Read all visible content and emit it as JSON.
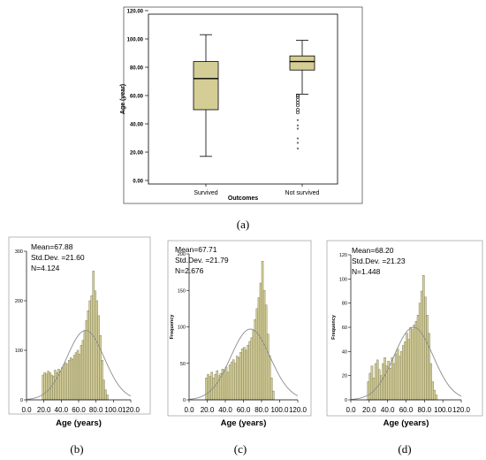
{
  "colors": {
    "fill": "#d6d09a",
    "edge": "#6d6a3e",
    "curve": "#808080",
    "axis": "#000000"
  },
  "chart_data": [
    {
      "type": "box",
      "caption": "(a)",
      "xlabel": "Outcomes",
      "ylabel": "Age (year)",
      "ylim": [
        0,
        120
      ],
      "yticks": [
        "0.00",
        "20.00",
        "40.00",
        "60.00",
        "80.00",
        "100.00",
        "120.00"
      ],
      "categories": [
        "Survived",
        "Not survived"
      ],
      "boxes": [
        {
          "whisker_low": 17,
          "q1": 50,
          "median": 72,
          "q3": 84,
          "whisker_high": 103,
          "outliers": []
        },
        {
          "whisker_low": 61,
          "q1": 78,
          "median": 84,
          "q3": 88,
          "whisker_high": 99,
          "outliers": [
            22,
            26,
            29,
            36,
            38,
            42,
            48,
            50,
            53,
            55,
            57,
            59,
            60
          ]
        }
      ]
    },
    {
      "type": "histogram",
      "caption": "(b)",
      "xlabel": "Age (years)",
      "ylabel": "",
      "stats": [
        "Mean=67.88",
        "Std.Dev. =21.60",
        "N=4.124"
      ],
      "xlim": [
        0,
        120
      ],
      "xticks": [
        "0.0",
        "20.0",
        "40.0",
        "60.0",
        "80.0",
        "100.0",
        "120.0"
      ],
      "ylim": [
        0,
        300
      ],
      "yticks": [
        "0",
        "100",
        "200",
        "300"
      ],
      "bin_start": 18,
      "bin_width": 2,
      "values": [
        50,
        55,
        52,
        58,
        55,
        50,
        48,
        60,
        55,
        62,
        58,
        65,
        70,
        75,
        72,
        80,
        85,
        82,
        90,
        95,
        100,
        92,
        110,
        120,
        140,
        160,
        180,
        200,
        210,
        260,
        220,
        200,
        170,
        130,
        80,
        40,
        20,
        10
      ],
      "normal_mean": 67.88,
      "normal_sd": 21.6,
      "normal_peak": 140
    },
    {
      "type": "histogram",
      "caption": "(c)",
      "xlabel": "Age (years)",
      "ylabel": "Frequency",
      "stats": [
        "Mean=67.71",
        "Std.Dev. =21.79",
        "N=2.676"
      ],
      "xlim": [
        0,
        120
      ],
      "xticks": [
        "0.0",
        "20.0",
        "40.0",
        "60.0",
        "80.0",
        "100.0",
        "120.0"
      ],
      "ylim": [
        0,
        200
      ],
      "yticks": [
        "0",
        "50",
        "100",
        "150",
        "200"
      ],
      "bin_start": 18,
      "bin_width": 2,
      "values": [
        30,
        35,
        32,
        38,
        30,
        35,
        40,
        33,
        36,
        42,
        40,
        45,
        38,
        48,
        52,
        55,
        50,
        60,
        58,
        65,
        70,
        72,
        68,
        75,
        80,
        85,
        95,
        110,
        125,
        140,
        160,
        190,
        150,
        130,
        90,
        60,
        30,
        12
      ],
      "normal_mean": 67.71,
      "normal_sd": 21.79,
      "normal_peak": 97
    },
    {
      "type": "histogram",
      "caption": "(d)",
      "xlabel": "Age (years)",
      "ylabel": "Frequency",
      "stats": [
        "Mean=68.20",
        "Std.Dev. =21.23",
        "N=1.448"
      ],
      "xlim": [
        0,
        120
      ],
      "xticks": [
        "0.0",
        "20.0",
        "40.0",
        "60.0",
        "80.0",
        "100.0",
        "120.0"
      ],
      "ylim": [
        0,
        120
      ],
      "yticks": [
        "0",
        "20",
        "40",
        "60",
        "80",
        "100",
        "120"
      ],
      "bin_start": 18,
      "bin_width": 2,
      "values": [
        15,
        22,
        28,
        18,
        30,
        33,
        25,
        20,
        30,
        35,
        28,
        32,
        26,
        35,
        30,
        38,
        42,
        36,
        40,
        45,
        48,
        55,
        50,
        60,
        58,
        62,
        65,
        70,
        80,
        90,
        103,
        85,
        70,
        55,
        30,
        15,
        8,
        4
      ],
      "normal_mean": 68.2,
      "normal_sd": 21.23,
      "normal_peak": 60
    }
  ]
}
